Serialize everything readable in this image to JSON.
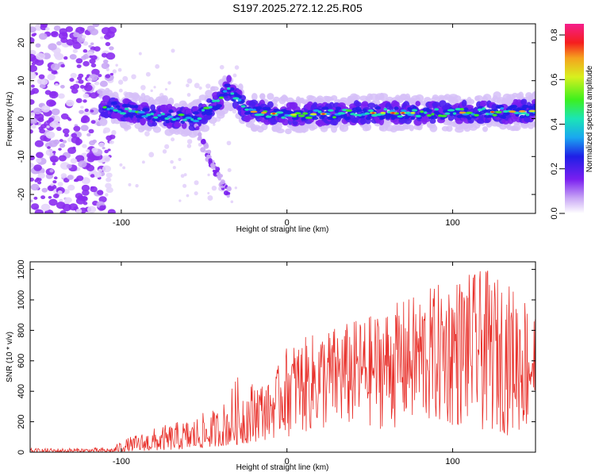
{
  "title": "S197.2025.272.12.25.R05",
  "chart_data": [
    {
      "type": "heatmap",
      "name": "spectrogram",
      "xlabel": "Height of straight line (km)",
      "ylabel": "Frequency (Hz)",
      "xlim": [
        -155,
        150
      ],
      "ylim": [
        -25,
        25
      ],
      "xticks": [
        -100,
        0,
        100
      ],
      "yticks": [
        -20,
        -10,
        0,
        10,
        20
      ],
      "colorbar": {
        "label": "Normalized spectral amplitude",
        "range": [
          0,
          0.85
        ],
        "ticks": [
          0,
          0.2,
          0.4,
          0.6,
          0.8
        ],
        "tick_labels": [
          "0.0",
          "0.2",
          "0.4",
          "0.6",
          "0.8"
        ]
      },
      "ridge": {
        "description_points": [
          {
            "x": -110,
            "y": 3
          },
          {
            "x": -80,
            "y": 1
          },
          {
            "x": -55,
            "y": 0
          },
          {
            "x": -40,
            "y": 5
          },
          {
            "x": -35,
            "y": 8
          },
          {
            "x": -25,
            "y": 2
          },
          {
            "x": 0,
            "y": 1
          },
          {
            "x": 50,
            "y": 1.5
          },
          {
            "x": 100,
            "y": 1.5
          },
          {
            "x": 150,
            "y": 2
          }
        ],
        "branch": [
          {
            "x": -55,
            "y": -3
          },
          {
            "x": -45,
            "y": -12
          },
          {
            "x": -35,
            "y": -20
          }
        ]
      }
    },
    {
      "type": "line",
      "name": "snr",
      "xlabel": "Height of straight line (km)",
      "ylabel": "SNR (10 * v/v)",
      "xlim": [
        -155,
        150
      ],
      "ylim": [
        0,
        1250
      ],
      "xticks": [
        -100,
        0,
        100
      ],
      "yticks": [
        0,
        200,
        400,
        600,
        800,
        1000,
        1200
      ],
      "series": [
        {
          "name": "SNR",
          "color": "#e8302a",
          "envelope": [
            {
              "x": -155,
              "lo": 0,
              "hi": 25
            },
            {
              "x": -105,
              "lo": 0,
              "hi": 30
            },
            {
              "x": -100,
              "lo": 5,
              "hi": 80
            },
            {
              "x": -80,
              "lo": 10,
              "hi": 160
            },
            {
              "x": -60,
              "lo": 20,
              "hi": 220
            },
            {
              "x": -40,
              "lo": 40,
              "hi": 300
            },
            {
              "x": -30,
              "lo": 50,
              "hi": 500
            },
            {
              "x": -10,
              "lo": 80,
              "hi": 450
            },
            {
              "x": 0,
              "lo": 100,
              "hi": 700
            },
            {
              "x": 20,
              "lo": 120,
              "hi": 800
            },
            {
              "x": 50,
              "lo": 150,
              "hi": 900
            },
            {
              "x": 80,
              "lo": 150,
              "hi": 1050
            },
            {
              "x": 100,
              "lo": 150,
              "hi": 1150
            },
            {
              "x": 120,
              "lo": 120,
              "hi": 1200
            },
            {
              "x": 150,
              "lo": 100,
              "hi": 1000
            }
          ]
        }
      ]
    }
  ]
}
